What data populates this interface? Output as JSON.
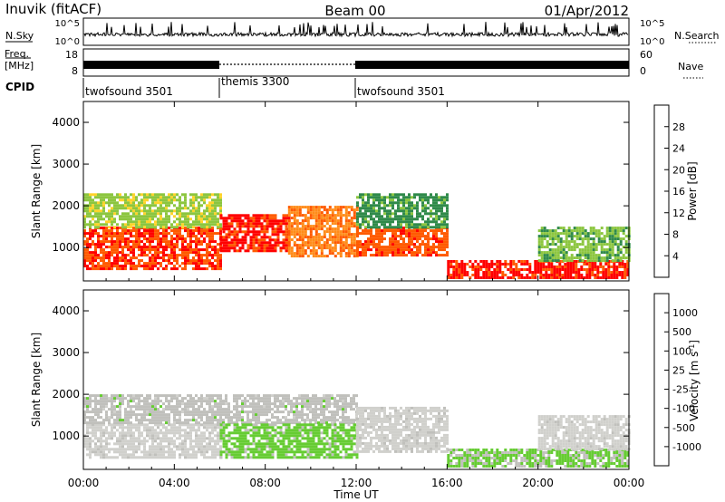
{
  "header": {
    "station": "Inuvik (fitACF)",
    "beam": "Beam 00",
    "date": "01/Apr/2012"
  },
  "strip_panel": {
    "nsky_label": "N.Sky",
    "nsearch_label": "N.Search",
    "nsky_ticks": [
      "10^5",
      "10^0"
    ],
    "nsearch_ticks": [
      "10^5",
      "10^0"
    ],
    "freq_label_1": "Freq.",
    "freq_label_2": "[MHz]",
    "freq_ticks": [
      "18",
      "8"
    ],
    "nave_label": "Nave",
    "nave_ticks": [
      "60",
      "0"
    ],
    "cpid_label": "CPID",
    "cpid_segments": [
      {
        "name": "twofsound 3501",
        "start": 0,
        "end": 6
      },
      {
        "name": "themis 3300",
        "start": 6,
        "end": 12
      },
      {
        "name": "twofsound 3501",
        "start": 12,
        "end": 24
      }
    ]
  },
  "colors": {
    "power": [
      "#0000ff",
      "#2e4f9e",
      "#2f8a4a",
      "#8cc63f",
      "#ffd42a",
      "#ff8c1a",
      "#ff5a00",
      "#ff0000"
    ],
    "velocity": [
      "#ff0000",
      "#ff6a00",
      "#ff9f1a",
      "#d0d0cc",
      "#c0c0bc",
      "#66cc33",
      "#2f8a4a",
      "#2e4f9e",
      "#0d3aa8"
    ]
  },
  "chart_data": [
    {
      "type": "heatmap",
      "name": "power",
      "xlabel": "Time UT",
      "ylabel": "Slant Range [km]",
      "xlim": [
        0,
        24
      ],
      "ylim": [
        200,
        4500
      ],
      "x_ticks": [
        "00:00",
        "04:00",
        "08:00",
        "12:00",
        "16:00",
        "20:00",
        "00:00"
      ],
      "y_ticks": [
        "1000",
        "2000",
        "3000",
        "4000"
      ],
      "colorbar_label": "Power [dB]",
      "colorbar_ticks": [
        "28",
        "24",
        "20",
        "16",
        "12",
        "8",
        "4"
      ],
      "colorbar_range": [
        0,
        30
      ],
      "bands": [
        {
          "x_start": 0,
          "x_end": 6,
          "y_low": 500,
          "y_high": 1500,
          "value": 26
        },
        {
          "x_start": 0,
          "x_end": 6,
          "y_low": 1500,
          "y_high": 2300,
          "value": 14
        },
        {
          "x_start": 6,
          "x_end": 9,
          "y_low": 900,
          "y_high": 1800,
          "value": 27
        },
        {
          "x_start": 9,
          "x_end": 12,
          "y_low": 800,
          "y_high": 2000,
          "value": 22
        },
        {
          "x_start": 12,
          "x_end": 16,
          "y_low": 800,
          "y_high": 1500,
          "value": 25
        },
        {
          "x_start": 12,
          "x_end": 16,
          "y_low": 1500,
          "y_high": 2300,
          "value": 10
        },
        {
          "x_start": 16,
          "x_end": 24,
          "y_low": 250,
          "y_high": 700,
          "value": 27
        },
        {
          "x_start": 20,
          "x_end": 24,
          "y_low": 700,
          "y_high": 1500,
          "value": 12
        }
      ]
    },
    {
      "type": "heatmap",
      "name": "velocity",
      "xlabel": "Time UT",
      "ylabel": "Slant Range [km]",
      "xlim": [
        0,
        24
      ],
      "ylim": [
        200,
        4500
      ],
      "x_ticks": [
        "00:00",
        "04:00",
        "08:00",
        "12:00",
        "16:00",
        "20:00",
        "00:00"
      ],
      "y_ticks": [
        "1000",
        "2000",
        "3000",
        "4000"
      ],
      "colorbar_label": "Velocity [m s^-1]",
      "colorbar_ticks": [
        "1000",
        "500",
        "100",
        "25",
        "-25",
        "-100",
        "-500",
        "-1000"
      ],
      "colorbar_range": [
        -1000,
        1000
      ],
      "bands": [
        {
          "x_start": 0,
          "x_end": 6,
          "y_low": 500,
          "y_high": 1300,
          "value": -200
        },
        {
          "x_start": 0,
          "x_end": 12,
          "y_low": 1300,
          "y_high": 2000,
          "value": 0
        },
        {
          "x_start": 6,
          "x_end": 12,
          "y_low": 500,
          "y_high": 1300,
          "value": 200
        },
        {
          "x_start": 12,
          "x_end": 16,
          "y_low": 600,
          "y_high": 1700,
          "value": -200
        },
        {
          "x_start": 16,
          "x_end": 24,
          "y_low": 250,
          "y_high": 700,
          "value": 150
        },
        {
          "x_start": 20,
          "x_end": 24,
          "y_low": 700,
          "y_high": 1500,
          "value": -200
        }
      ]
    }
  ]
}
